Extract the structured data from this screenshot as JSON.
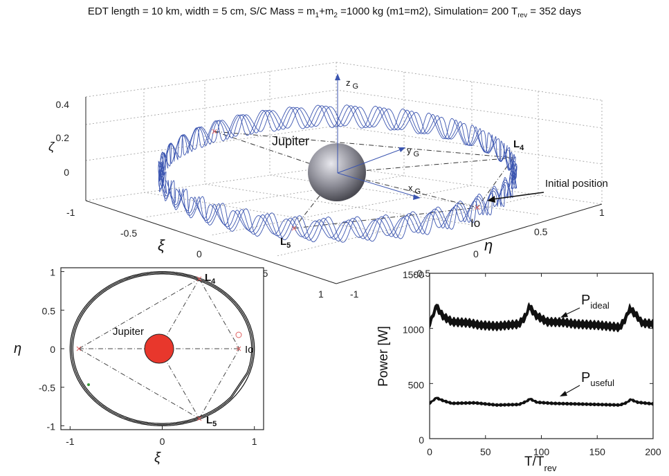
{
  "title": "EDT length = 10 km, width = 5 cm, S/C Mass = m1+m2 =1000 kg (m1=m2), Simulation= 200 Trev = 352 days",
  "title_parts": {
    "p1": "EDT length = 10 km, width = 5 cm, S/C Mass = m",
    "s1": "1",
    "p2": "+m",
    "s2": "2",
    "p3": " =1000 kg (m1=m2), Simulation= 200 T",
    "s3": "rev",
    "p4": " = 352 days"
  },
  "colors": {
    "orbit3d": "#3b55b0",
    "jupiter2d": "#e8372c",
    "axis": "#222222",
    "marker": "#e06060"
  },
  "chart_data": [
    {
      "type": "3d-orbit",
      "zlabel": "ζ",
      "xlabel": "ξ",
      "ylabel": "η",
      "z_ticks": [
        "0",
        "0.2",
        "0.4"
      ],
      "xi_ticks": [
        "-1",
        "-0.5",
        "0",
        "0.5",
        "1"
      ],
      "eta_ticks": [
        "-1",
        "-0.5",
        "0",
        "0.5",
        "1"
      ],
      "frame_labels": {
        "z": "z",
        "zsub": "G",
        "y": "y",
        "ysub": "G",
        "x": "x",
        "xsub": "G"
      },
      "labels": {
        "jupiter": "Jupiter",
        "L4": "L",
        "L4sub": "4",
        "L5": "L",
        "L5sub": "5",
        "io": "Io",
        "initial": "Initial position"
      }
    },
    {
      "type": "orbit-2d",
      "xlabel": "ξ",
      "ylabel": "η",
      "x_ticks": [
        "-1",
        "0",
        "1"
      ],
      "y_ticks": [
        "1",
        "0.5",
        "0",
        "-0.5",
        "-1"
      ],
      "xlim": [
        -1.1,
        1.1
      ],
      "ylim": [
        -1.05,
        1.05
      ],
      "points": {
        "L4": [
          0.5,
          0.866
        ],
        "L5": [
          0.5,
          -0.866
        ],
        "io": [
          1,
          0
        ],
        "L3": [
          -1,
          0
        ]
      },
      "labels": {
        "jupiter": "Jupiter",
        "L4": "L",
        "L4sub": "4",
        "L5": "L",
        "L5sub": "5",
        "io": "Io"
      }
    },
    {
      "type": "line",
      "ylabel": "Power [W]",
      "xlabel": "T/T",
      "xlabel_sub": "rev",
      "xlim": [
        0,
        200
      ],
      "ylim": [
        0,
        1500
      ],
      "x_ticks": [
        0,
        50,
        100,
        150,
        200
      ],
      "y_ticks": [
        0,
        500,
        1000,
        1500
      ],
      "series": [
        {
          "name": "P",
          "name_sub": "ideal",
          "mean": [
            [
              0,
              1040
            ],
            [
              3,
              1120
            ],
            [
              6,
              1200
            ],
            [
              12,
              1110
            ],
            [
              20,
              1060
            ],
            [
              35,
              1050
            ],
            [
              45,
              1030
            ],
            [
              60,
              1020
            ],
            [
              80,
              1040
            ],
            [
              86,
              1110
            ],
            [
              89,
              1200
            ],
            [
              95,
              1120
            ],
            [
              105,
              1060
            ],
            [
              120,
              1055
            ],
            [
              130,
              1040
            ],
            [
              150,
              1030
            ],
            [
              170,
              1010
            ],
            [
              175,
              1080
            ],
            [
              179,
              1180
            ],
            [
              185,
              1120
            ],
            [
              190,
              1050
            ],
            [
              200,
              1040
            ]
          ],
          "band": 45
        },
        {
          "name": "P",
          "name_sub": "useful",
          "mean": [
            [
              0,
              320
            ],
            [
              3,
              345
            ],
            [
              6,
              370
            ],
            [
              12,
              345
            ],
            [
              20,
              320
            ],
            [
              40,
              325
            ],
            [
              60,
              305
            ],
            [
              80,
              310
            ],
            [
              86,
              335
            ],
            [
              90,
              360
            ],
            [
              96,
              330
            ],
            [
              110,
              320
            ],
            [
              130,
              315
            ],
            [
              150,
              310
            ],
            [
              170,
              305
            ],
            [
              176,
              325
            ],
            [
              180,
              355
            ],
            [
              186,
              330
            ],
            [
              200,
              315
            ]
          ],
          "band": 15
        }
      ]
    }
  ]
}
